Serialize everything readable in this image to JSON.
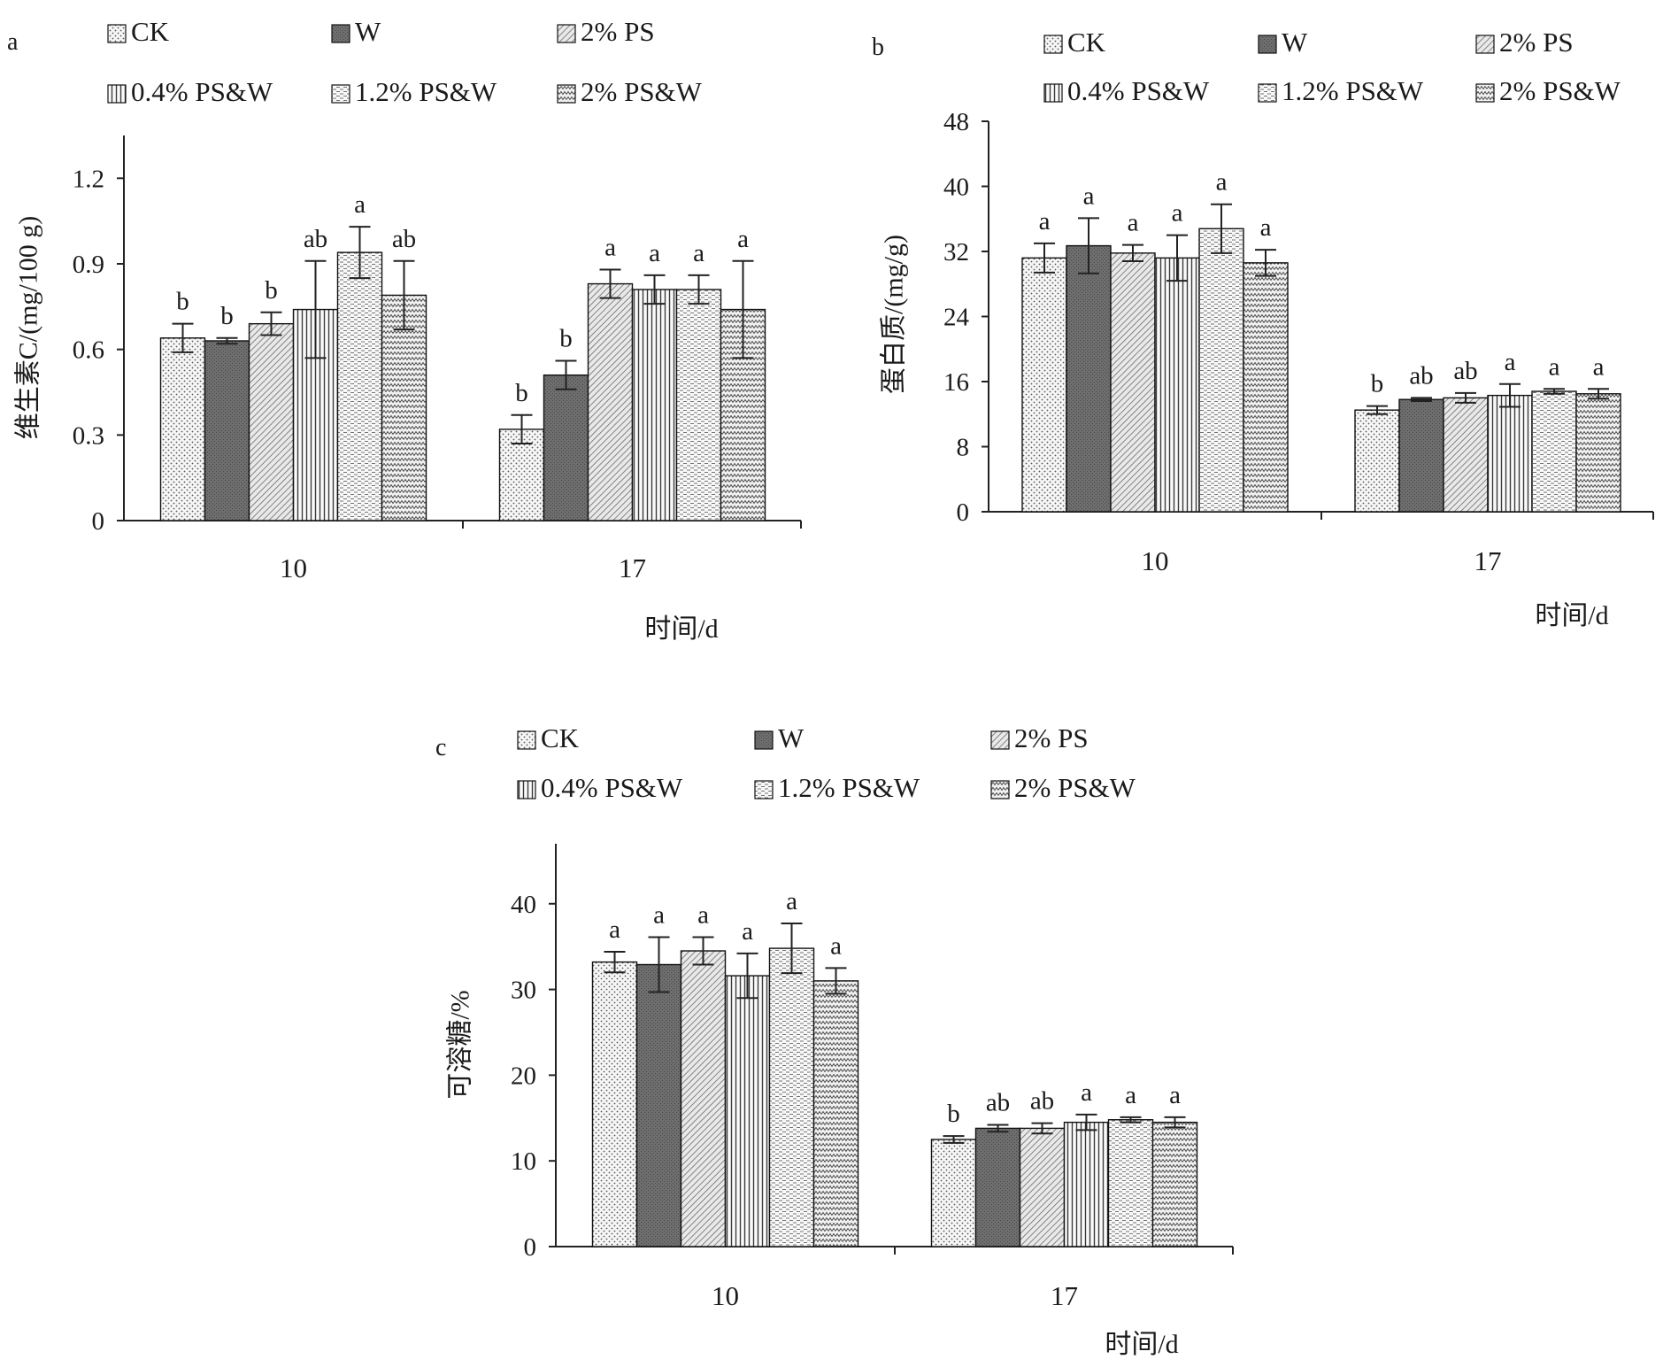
{
  "legend": [
    "CK",
    "W",
    "2% PS",
    "0.4% PS&W",
    "1.2% PS&W",
    "2% PS&W"
  ],
  "chart_data": [
    {
      "panel": "a",
      "type": "bar",
      "categories": [
        "10",
        "17"
      ],
      "xlabel": "时间/d",
      "ylabel": "维生素C/(mg/100 g)",
      "ylim": [
        0,
        1.35
      ],
      "yticks": [
        0,
        0.3,
        0.6,
        0.9,
        1.2
      ],
      "series": [
        {
          "name": "CK",
          "values": [
            0.64,
            0.32
          ],
          "errors": [
            0.05,
            0.05
          ],
          "letters": [
            "b",
            "b"
          ]
        },
        {
          "name": "W",
          "values": [
            0.63,
            0.51
          ],
          "errors": [
            0.01,
            0.05
          ],
          "letters": [
            "b",
            "b"
          ]
        },
        {
          "name": "2% PS",
          "values": [
            0.69,
            0.83
          ],
          "errors": [
            0.04,
            0.05
          ],
          "letters": [
            "b",
            "a"
          ]
        },
        {
          "name": "0.4% PS&W",
          "values": [
            0.74,
            0.81
          ],
          "errors": [
            0.17,
            0.05
          ],
          "letters": [
            "ab",
            "a"
          ]
        },
        {
          "name": "1.2% PS&W",
          "values": [
            0.94,
            0.81
          ],
          "errors": [
            0.09,
            0.05
          ],
          "letters": [
            "a",
            "a"
          ]
        },
        {
          "name": "2% PS&W",
          "values": [
            0.79,
            0.74
          ],
          "errors": [
            0.12,
            0.17
          ],
          "letters": [
            "ab",
            "a"
          ]
        }
      ]
    },
    {
      "panel": "b",
      "type": "bar",
      "categories": [
        "10",
        "17"
      ],
      "xlabel": "时间/d",
      "ylabel": "蛋白质/(mg/g)",
      "ylim": [
        0,
        48
      ],
      "yticks": [
        0,
        8,
        16,
        24,
        32,
        40,
        48
      ],
      "series": [
        {
          "name": "CK",
          "values": [
            31.2,
            12.5
          ],
          "errors": [
            1.8,
            0.5
          ],
          "letters": [
            "a",
            "b"
          ]
        },
        {
          "name": "W",
          "values": [
            32.7,
            13.8
          ],
          "errors": [
            3.4,
            0.2
          ],
          "letters": [
            "a",
            "ab"
          ]
        },
        {
          "name": "2% PS",
          "values": [
            31.8,
            14.0
          ],
          "errors": [
            1.0,
            0.6
          ],
          "letters": [
            "a",
            "ab"
          ]
        },
        {
          "name": "0.4% PS&W",
          "values": [
            31.2,
            14.3
          ],
          "errors": [
            2.8,
            1.4
          ],
          "letters": [
            "a",
            "a"
          ]
        },
        {
          "name": "1.2% PS&W",
          "values": [
            34.8,
            14.8
          ],
          "errors": [
            3.0,
            0.3
          ],
          "letters": [
            "a",
            "a"
          ]
        },
        {
          "name": "2% PS&W",
          "values": [
            30.6,
            14.5
          ],
          "errors": [
            1.6,
            0.6
          ],
          "letters": [
            "a",
            "a"
          ]
        }
      ]
    },
    {
      "panel": "c",
      "type": "bar",
      "categories": [
        "10",
        "17"
      ],
      "xlabel": "时间/d",
      "ylabel": "可溶糖/%",
      "ylim": [
        0,
        47
      ],
      "yticks": [
        0,
        10,
        20,
        30,
        40
      ],
      "series": [
        {
          "name": "CK",
          "values": [
            33.2,
            12.5
          ],
          "errors": [
            1.2,
            0.4
          ],
          "letters": [
            "a",
            "b"
          ]
        },
        {
          "name": "W",
          "values": [
            32.9,
            13.8
          ],
          "errors": [
            3.2,
            0.4
          ],
          "letters": [
            "a",
            "ab"
          ]
        },
        {
          "name": "2% PS",
          "values": [
            34.5,
            13.8
          ],
          "errors": [
            1.6,
            0.6
          ],
          "letters": [
            "a",
            "ab"
          ]
        },
        {
          "name": "0.4% PS&W",
          "values": [
            31.6,
            14.5
          ],
          "errors": [
            2.6,
            0.9
          ],
          "letters": [
            "a",
            "a"
          ]
        },
        {
          "name": "1.2% PS&W",
          "values": [
            34.8,
            14.8
          ],
          "errors": [
            2.9,
            0.3
          ],
          "letters": [
            "a",
            "a"
          ]
        },
        {
          "name": "2% PS&W",
          "values": [
            31.0,
            14.5
          ],
          "errors": [
            1.5,
            0.6
          ],
          "letters": [
            "a",
            "a"
          ]
        }
      ]
    }
  ]
}
